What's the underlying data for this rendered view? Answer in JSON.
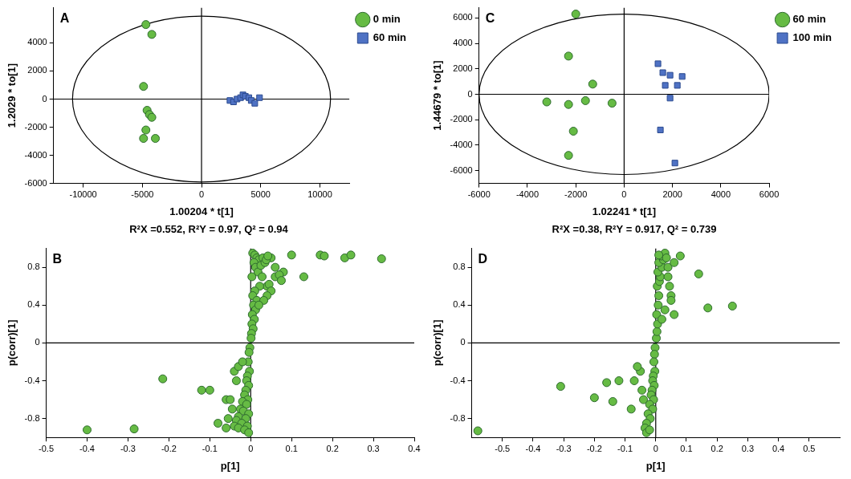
{
  "chart_data": [
    {
      "type": "scatter",
      "panel": "A",
      "x_label": "1.00204 * t[1]",
      "y_label": "1.2029 * to[1]",
      "subtitle": "R²X =0.552, R²Y = 0.97, Q² = 0.94",
      "xlim": [
        -12500,
        12500
      ],
      "xticks": [
        -10000,
        -5000,
        0,
        5000,
        10000
      ],
      "ylim": [
        -6000,
        6500
      ],
      "yticks": [
        -6000,
        -4000,
        -2000,
        0,
        2000,
        4000
      ],
      "grid": false,
      "legend": "top right",
      "ellipse": {
        "x_radius": 10900,
        "y_radius": 5900
      },
      "series": [
        {
          "name": "0 min",
          "color": "#66bb44",
          "marker": "circle",
          "x": [
            -4700,
            -4200,
            -4900,
            -4600,
            -4400,
            -4200,
            -4700,
            -4900,
            -3900
          ],
          "values": [
            5300,
            4600,
            900,
            -800,
            -1100,
            -1300,
            -2200,
            -2800,
            -2800
          ]
        },
        {
          "name": "60 min",
          "color": "#4f72c4",
          "marker": "square",
          "x": [
            2400,
            2700,
            3000,
            3300,
            3500,
            3700,
            4000,
            4200,
            4500,
            4900
          ],
          "values": [
            -100,
            -200,
            0,
            100,
            300,
            200,
            100,
            -100,
            -300,
            100
          ]
        }
      ]
    },
    {
      "type": "scatter",
      "panel": "B",
      "x_label": "p[1]",
      "y_label": "p(corr)[1]",
      "xlim": [
        -0.5,
        0.4
      ],
      "xticks": [
        -0.5,
        -0.4,
        -0.3,
        -0.2,
        -0.1,
        0,
        0.1,
        0.2,
        0.3,
        0.4
      ],
      "ylim": [
        -1,
        1
      ],
      "yticks": [
        -0.8,
        -0.4,
        0,
        0.4,
        0.8
      ],
      "grid": false,
      "series": [
        {
          "color": "#66bb44",
          "marker": "circle",
          "x": [
            -0.4,
            -0.285,
            -0.215,
            -0.12,
            -0.1,
            -0.08,
            -0.06,
            0.13,
            0.17,
            0.18,
            0.23,
            0.245,
            0.32,
            0.1,
            0.08,
            0.06,
            0.05,
            0.04,
            0.005,
            0.01,
            0.015,
            0.02,
            0.008,
            0.012,
            0.018,
            0.003,
            0.025,
            0.03,
            0.035,
            0.028,
            0.022,
            0.01,
            0.005,
            0.015,
            0.007,
            0.012,
            0.004,
            0.009,
            0.003,
            0.006,
            0.002,
            0.001,
            0.045,
            0.05,
            0.04,
            0.032,
            0.02,
            0.038,
            0.042,
            0.06,
            0.07,
            0.075,
            -0.002,
            -0.004,
            -0.006,
            -0.003,
            -0.008,
            -0.01,
            -0.005,
            -0.012,
            -0.015,
            -0.007,
            -0.02,
            -0.01,
            -0.025,
            -0.018,
            -0.005,
            -0.03,
            -0.012,
            -0.035,
            -0.022,
            -0.008,
            -0.04,
            -0.03,
            -0.015,
            -0.005,
            -0.045,
            -0.05,
            -0.055,
            -0.06,
            -0.035,
            -0.04,
            -0.03,
            -0.02
          ],
          "values": [
            -0.92,
            -0.91,
            -0.38,
            -0.5,
            -0.5,
            -0.85,
            -0.6,
            0.7,
            0.93,
            0.92,
            0.9,
            0.93,
            0.89,
            0.93,
            0.75,
            0.8,
            0.9,
            0.6,
            0.95,
            0.93,
            0.9,
            0.88,
            0.85,
            0.8,
            0.75,
            0.7,
            0.82,
            0.9,
            0.85,
            0.7,
            0.6,
            0.55,
            0.5,
            0.45,
            0.4,
            0.35,
            0.3,
            0.25,
            0.2,
            0.15,
            0.1,
            0.05,
            0.62,
            0.55,
            0.5,
            0.45,
            0.4,
            0.88,
            0.92,
            0.7,
            0.72,
            0.66,
            -0.05,
            -0.1,
            -0.2,
            -0.3,
            -0.35,
            -0.4,
            -0.45,
            -0.5,
            -0.55,
            -0.6,
            -0.62,
            -0.65,
            -0.7,
            -0.72,
            -0.75,
            -0.78,
            -0.8,
            -0.82,
            -0.85,
            -0.88,
            -0.88,
            -0.9,
            -0.92,
            -0.95,
            -0.7,
            -0.6,
            -0.8,
            -0.9,
            -0.4,
            -0.3,
            -0.25,
            -0.2
          ]
        }
      ]
    },
    {
      "type": "scatter",
      "panel": "C",
      "x_label": "1.02241 * t[1]",
      "y_label": "1.44679 * to[1]",
      "subtitle": "R²X =0.38, R²Y = 0.917, Q² = 0.739",
      "xlim": [
        -6000,
        6000
      ],
      "xticks": [
        -6000,
        -4000,
        -2000,
        0,
        2000,
        4000,
        6000
      ],
      "ylim": [
        -7000,
        6800
      ],
      "yticks": [
        -6000,
        -4000,
        -2000,
        0,
        2000,
        4000,
        6000
      ],
      "grid": false,
      "legend": "top right",
      "ellipse": {
        "x_radius": 6000,
        "y_radius": 6300
      },
      "series": [
        {
          "name": "60 min",
          "color": "#66bb44",
          "marker": "circle",
          "x": [
            -2000,
            -2300,
            -1300,
            -3200,
            -2300,
            -1600,
            -500,
            -2100,
            -2300
          ],
          "values": [
            6300,
            3000,
            800,
            -600,
            -800,
            -500,
            -700,
            -2900,
            -4800
          ]
        },
        {
          "name": "100 min",
          "color": "#4f72c4",
          "marker": "square",
          "x": [
            1400,
            1600,
            1900,
            2400,
            1700,
            2200,
            1900,
            1500,
            2100
          ],
          "values": [
            2400,
            1700,
            1500,
            1400,
            700,
            700,
            -300,
            -2800,
            -5400
          ]
        }
      ]
    },
    {
      "type": "scatter",
      "panel": "D",
      "x_label": "p[1]",
      "y_label": "p(corr)[1]",
      "xlim": [
        -0.6,
        0.6
      ],
      "xticks": [
        -0.5,
        -0.4,
        -0.3,
        -0.2,
        -0.1,
        0,
        0.1,
        0.2,
        0.3,
        0.4,
        0.5
      ],
      "ylim": [
        -1,
        1
      ],
      "yticks": [
        -0.8,
        -0.4,
        0,
        0.4,
        0.8
      ],
      "grid": false,
      "series": [
        {
          "color": "#66bb44",
          "marker": "circle",
          "x": [
            -0.58,
            -0.31,
            -0.2,
            -0.16,
            -0.14,
            -0.12,
            0.14,
            0.17,
            0.25,
            0.08,
            0.05,
            0.06,
            0.002,
            0.004,
            0.006,
            0.003,
            0.008,
            0.01,
            0.005,
            0.012,
            0.015,
            0.007,
            0.02,
            0.01,
            0.025,
            0.018,
            0.03,
            0.035,
            0.04,
            0.045,
            0.05,
            0.03,
            0.02,
            0.06,
            0.04,
            0.01,
            -0.002,
            -0.004,
            -0.006,
            -0.003,
            -0.008,
            -0.01,
            -0.005,
            -0.012,
            -0.015,
            -0.007,
            -0.02,
            -0.01,
            -0.025,
            -0.018,
            -0.03,
            -0.035,
            -0.04,
            -0.045,
            -0.05,
            -0.06,
            -0.07,
            -0.08,
            -0.03,
            -0.02
          ],
          "values": [
            -0.93,
            -0.46,
            -0.58,
            -0.42,
            -0.62,
            -0.4,
            0.73,
            0.37,
            0.39,
            0.92,
            0.5,
            0.3,
            0.05,
            0.12,
            0.2,
            0.3,
            0.4,
            0.5,
            0.6,
            0.65,
            0.7,
            0.75,
            0.8,
            0.85,
            0.88,
            0.92,
            0.95,
            0.9,
            0.8,
            0.6,
            0.45,
            0.35,
            0.25,
            0.85,
            0.7,
            0.93,
            -0.05,
            -0.12,
            -0.2,
            -0.3,
            -0.35,
            -0.4,
            -0.45,
            -0.5,
            -0.55,
            -0.6,
            -0.65,
            -0.7,
            -0.75,
            -0.8,
            -0.85,
            -0.9,
            -0.6,
            -0.5,
            -0.3,
            -0.25,
            -0.4,
            -0.7,
            -0.95,
            -0.92
          ]
        }
      ]
    }
  ]
}
